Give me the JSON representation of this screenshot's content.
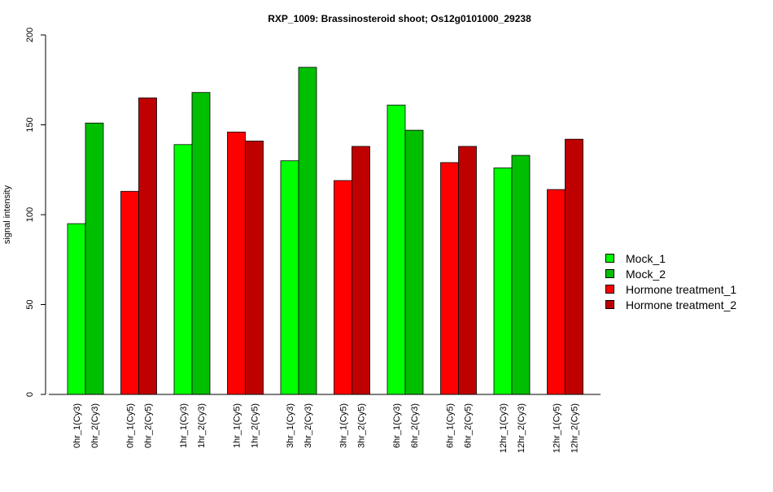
{
  "chart_data": {
    "type": "bar",
    "title": "RXP_1009: Brassinosteroid shoot; Os12g0101000_29238",
    "xlabel": "",
    "ylabel": "signal intensity",
    "ylim": [
      0,
      200
    ],
    "yticks": [
      0,
      50,
      100,
      150,
      200
    ],
    "categories": [
      "0hr_1(Cy3)",
      "0hr_2(Cy3)",
      "0hr_1(Cy5)",
      "0hr_2(Cy5)",
      "1hr_1(Cy3)",
      "1hr_2(Cy3)",
      "1hr_1(Cy5)",
      "1hr_2(Cy5)",
      "3hr_1(Cy3)",
      "3hr_2(Cy3)",
      "3hr_1(Cy5)",
      "3hr_2(Cy5)",
      "6hr_1(Cy3)",
      "6hr_2(Cy3)",
      "6hr_1(Cy5)",
      "6hr_2(Cy5)",
      "12hr_1(Cy3)",
      "12hr_2(Cy3)",
      "12hr_1(Cy5)",
      "12hr_2(Cy5)"
    ],
    "values": [
      95,
      151,
      113,
      165,
      139,
      168,
      146,
      141,
      130,
      182,
      119,
      138,
      161,
      147,
      129,
      138,
      126,
      133,
      114,
      142
    ],
    "bar_series": [
      0,
      1,
      2,
      3,
      0,
      1,
      2,
      3,
      0,
      1,
      2,
      3,
      0,
      1,
      2,
      3,
      0,
      1,
      2,
      3
    ],
    "series": [
      {
        "name": "Mock_1",
        "color": "#00ff00"
      },
      {
        "name": "Mock_2",
        "color": "#00bf00"
      },
      {
        "name": "Hormone treatment_1",
        "color": "#ff0000"
      },
      {
        "name": "Hormone treatment_2",
        "color": "#bf0000"
      }
    ],
    "legend_position": "right",
    "grid": false
  }
}
